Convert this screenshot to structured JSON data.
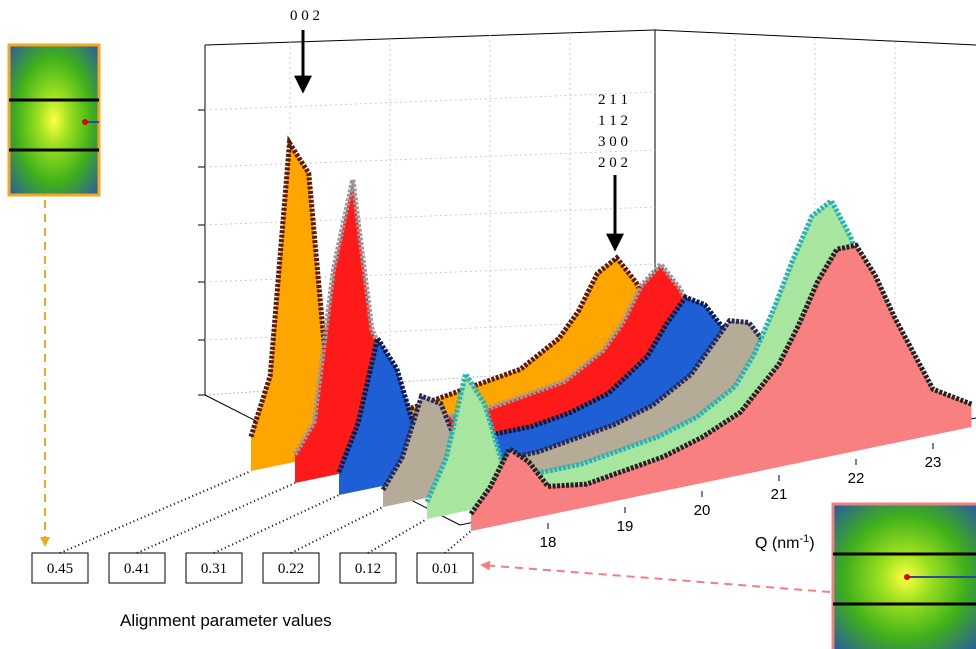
{
  "chart_data": {
    "type": "waterfall",
    "annotations": {
      "peak_left": "0 0 2",
      "peak_right": [
        "2 1 1",
        "1 1 2",
        "3 0 0",
        "2 0 2"
      ]
    },
    "x_label": "Q (nm",
    "x_label_sup": "-1",
    "x_label_end": ")",
    "legend_title": "Alignment parameter values",
    "xlim": [
      17,
      23.5
    ],
    "xticks": [
      18,
      19,
      20,
      21,
      22,
      23
    ],
    "ylim": [
      0,
      7
    ],
    "x": [
      17,
      17.25,
      17.5,
      17.75,
      18,
      18.5,
      19,
      19.5,
      20,
      20.5,
      21,
      21.25,
      21.5,
      21.75,
      22,
      22.25,
      22.5,
      23,
      23.5
    ],
    "series": [
      {
        "name": "0.45",
        "color": "#ffa500",
        "edge_color": "#5a1a0a",
        "values": [
          0.6,
          1.6,
          5.6,
          5.0,
          1.2,
          0.6,
          0.5,
          0.6,
          0.7,
          0.8,
          1.2,
          1.6,
          2.2,
          2.4,
          1.9,
          1.2,
          0.7,
          0.4,
          0.3
        ]
      },
      {
        "name": "0.41",
        "color": "#ff1a1a",
        "edge_color": "#9a9a9a",
        "values": [
          0.5,
          1.0,
          3.6,
          5.1,
          2.4,
          0.8,
          0.6,
          0.6,
          0.7,
          0.8,
          1.2,
          1.6,
          2.2,
          2.5,
          2.0,
          1.3,
          0.8,
          0.4,
          0.3
        ]
      },
      {
        "name": "0.31",
        "color": "#1f5fd6",
        "edge_color": "#0a1a4a",
        "values": [
          0.4,
          1.2,
          2.6,
          2.0,
          0.8,
          0.5,
          0.5,
          0.5,
          0.6,
          0.8,
          1.3,
          1.8,
          2.2,
          2.0,
          1.5,
          1.0,
          0.6,
          0.4,
          0.3
        ]
      },
      {
        "name": "0.22",
        "color": "#b5ab96",
        "edge_color": "#2a2a55",
        "values": [
          0.3,
          0.8,
          1.8,
          1.6,
          0.7,
          0.4,
          0.4,
          0.5,
          0.6,
          0.8,
          1.2,
          1.6,
          2.0,
          1.9,
          1.4,
          0.9,
          0.6,
          0.4,
          0.3
        ]
      },
      {
        "name": "0.12",
        "color": "#a8e6a0",
        "edge_color": "#2ab3b3",
        "values": [
          0.3,
          1.0,
          2.4,
          1.8,
          0.6,
          0.4,
          0.4,
          0.5,
          0.6,
          0.8,
          1.2,
          1.7,
          2.4,
          3.2,
          3.9,
          4.1,
          3.4,
          1.2,
          0.4
        ]
      },
      {
        "name": "0.01",
        "color": "#f88080",
        "edge_color": "#222222",
        "values": [
          0.3,
          0.7,
          1.3,
          1.0,
          0.5,
          0.4,
          0.5,
          0.6,
          0.8,
          1.1,
          1.8,
          2.4,
          3.1,
          3.6,
          3.6,
          3.0,
          2.2,
          0.8,
          0.4
        ]
      }
    ]
  }
}
